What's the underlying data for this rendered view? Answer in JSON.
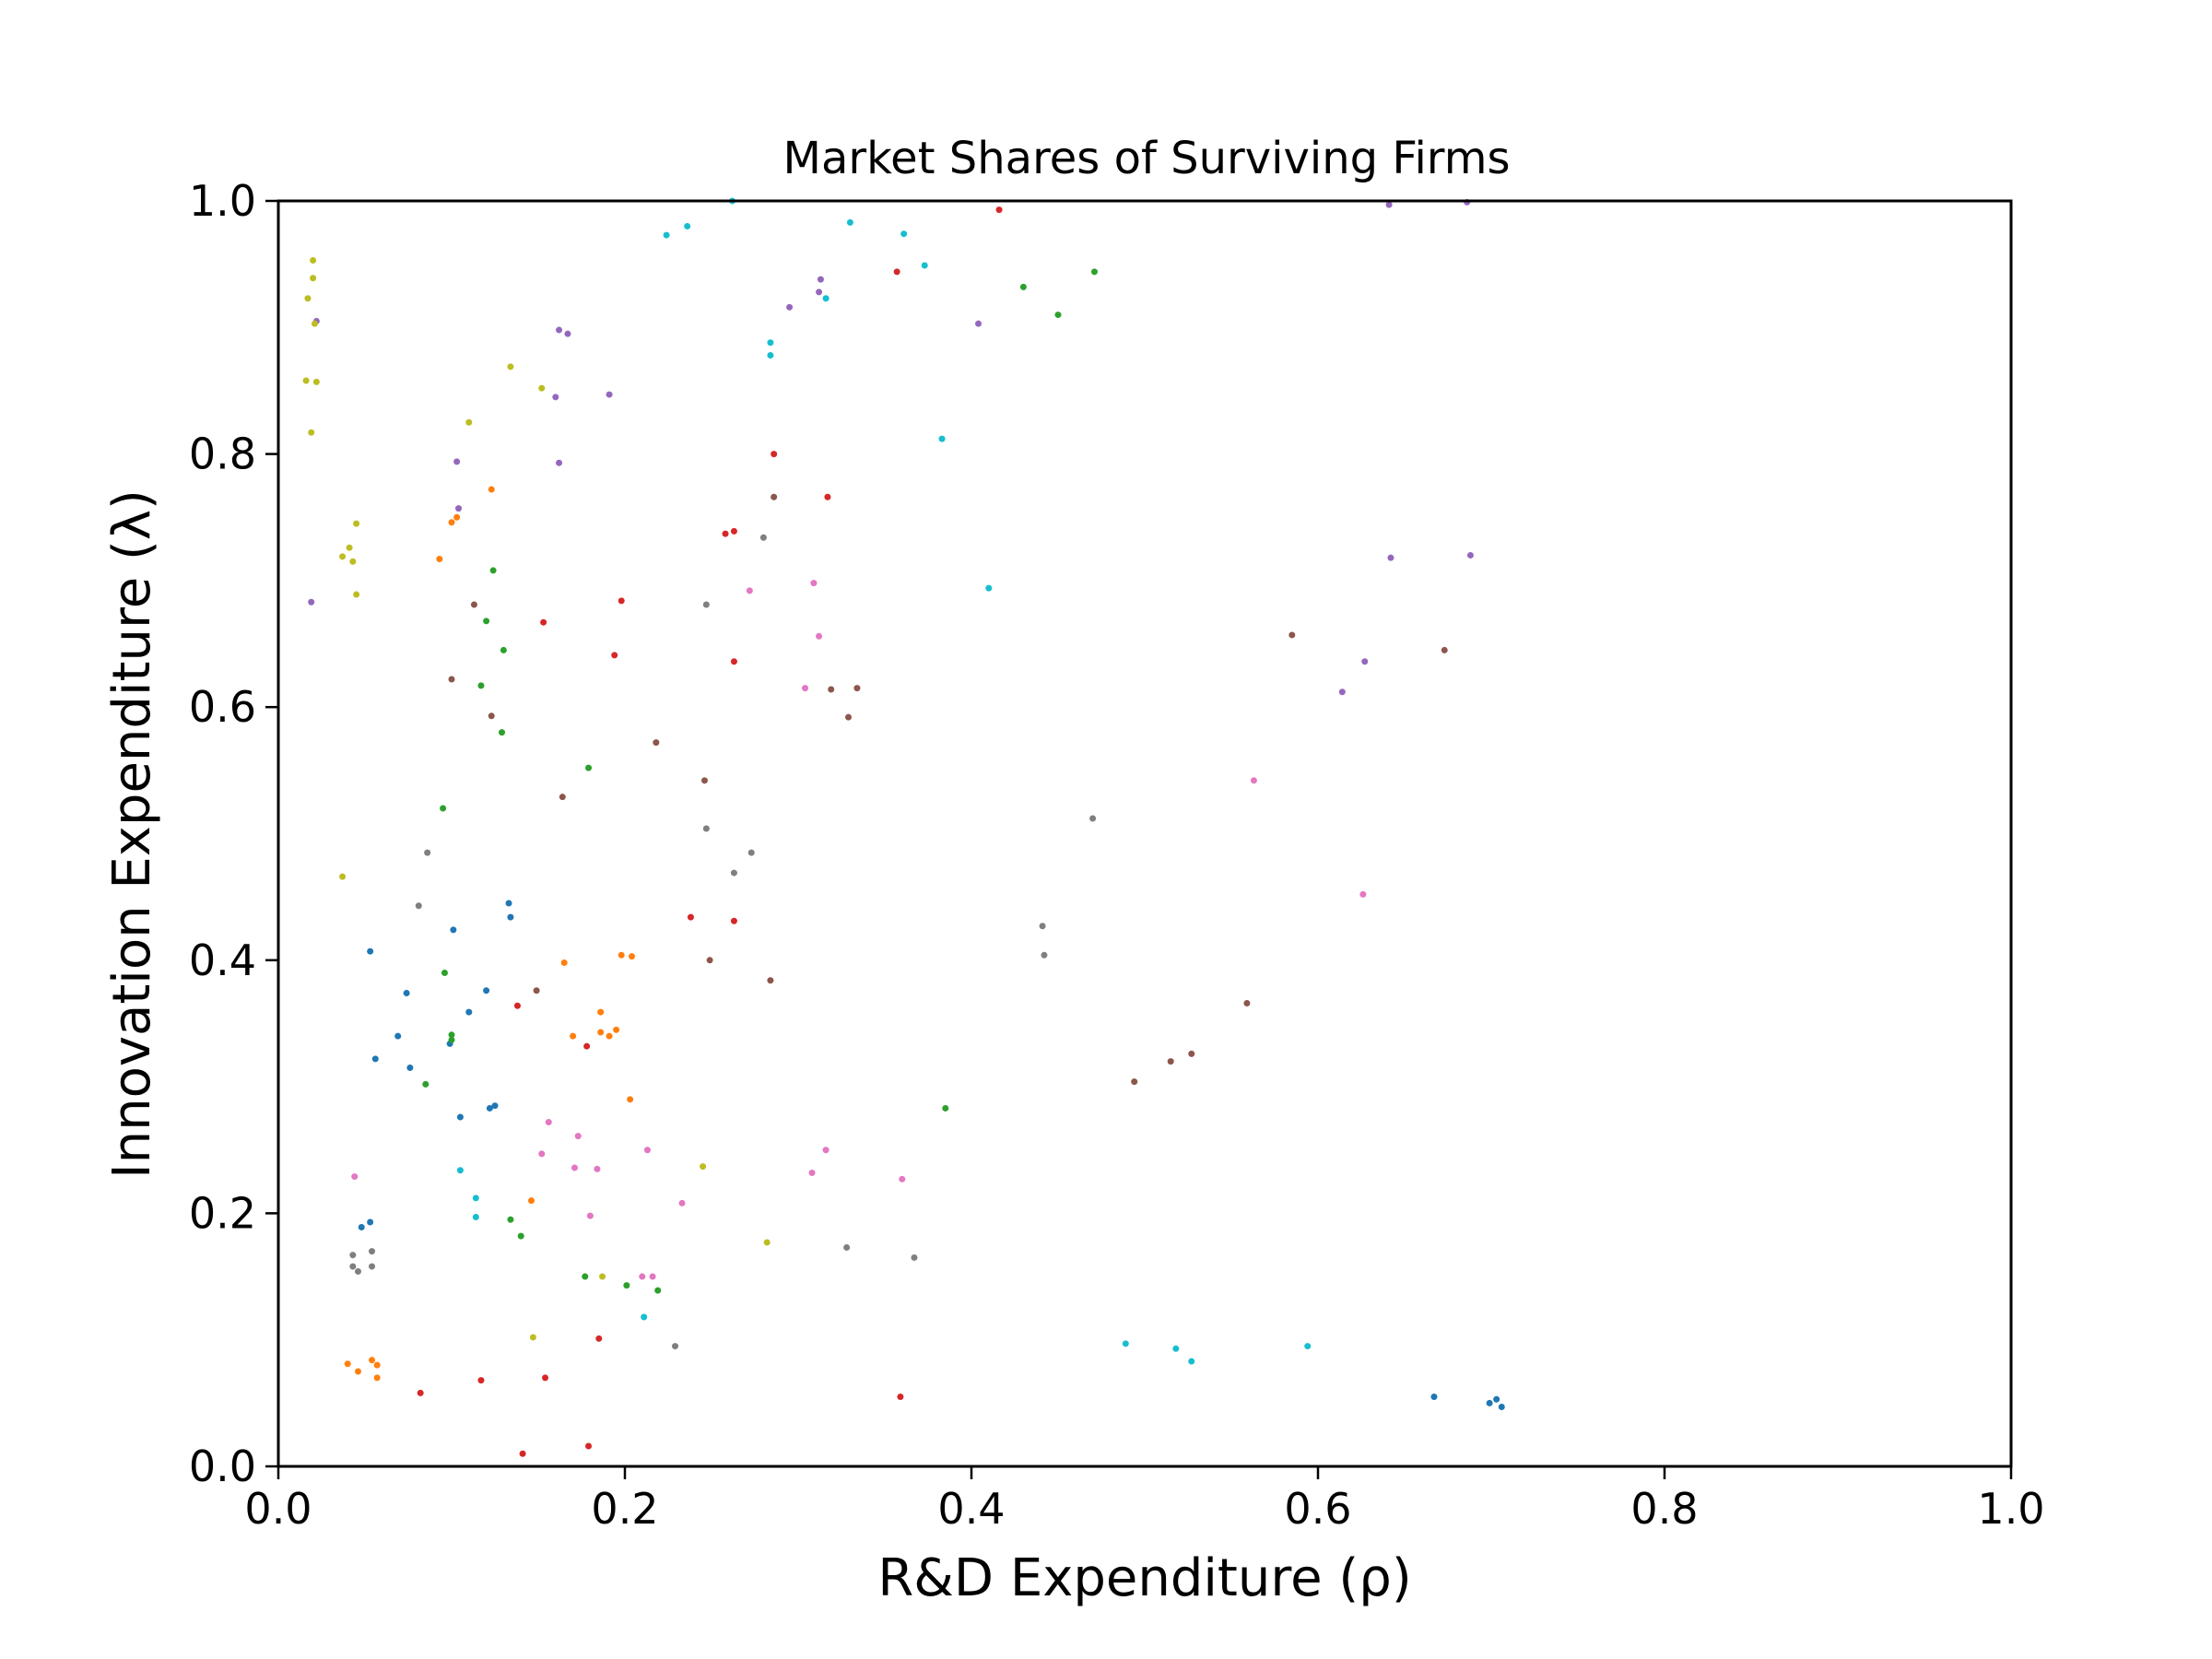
{
  "chart_data": {
    "type": "scatter",
    "title": "Market Shares of Surviving Firms",
    "xlabel": "R&D Expenditure (ρ)",
    "ylabel": "Innovation Expenditure (λ)",
    "xlim": [
      0,
      1
    ],
    "ylim": [
      0,
      1
    ],
    "xticks": [
      "0.0",
      "0.2",
      "0.4",
      "0.6",
      "0.8",
      "1.0"
    ],
    "yticks": [
      "0.0",
      "0.2",
      "0.4",
      "0.6",
      "0.8",
      "1.0"
    ],
    "grid": false,
    "legend": "none",
    "series": [
      {
        "color": "#1f77b4",
        "points": [
          [
            0.053,
            0.407
          ],
          [
            0.074,
            0.374
          ],
          [
            0.069,
            0.34
          ],
          [
            0.076,
            0.315
          ],
          [
            0.056,
            0.322
          ],
          [
            0.101,
            0.424
          ],
          [
            0.11,
            0.359
          ],
          [
            0.099,
            0.334
          ],
          [
            0.105,
            0.276
          ],
          [
            0.125,
            0.285
          ],
          [
            0.122,
            0.283
          ],
          [
            0.133,
            0.445
          ],
          [
            0.134,
            0.434
          ],
          [
            0.12,
            0.376
          ],
          [
            0.048,
            0.189
          ],
          [
            0.053,
            0.193
          ],
          [
            0.667,
            0.055
          ],
          [
            0.699,
            0.05
          ],
          [
            0.703,
            0.053
          ],
          [
            0.706,
            0.047
          ]
        ]
      },
      {
        "color": "#ff7f0e",
        "points": [
          [
            0.1,
            0.746
          ],
          [
            0.103,
            0.75
          ],
          [
            0.093,
            0.717
          ],
          [
            0.123,
            0.772
          ],
          [
            0.165,
            0.398
          ],
          [
            0.186,
            0.359
          ],
          [
            0.186,
            0.343
          ],
          [
            0.191,
            0.34
          ],
          [
            0.195,
            0.345
          ],
          [
            0.198,
            0.404
          ],
          [
            0.204,
            0.403
          ],
          [
            0.17,
            0.34
          ],
          [
            0.203,
            0.29
          ],
          [
            0.146,
            0.21
          ],
          [
            0.04,
            0.081
          ],
          [
            0.046,
            0.075
          ],
          [
            0.054,
            0.084
          ],
          [
            0.057,
            0.08
          ],
          [
            0.057,
            0.07
          ]
        ]
      },
      {
        "color": "#2ca02c",
        "points": [
          [
            0.124,
            0.708
          ],
          [
            0.12,
            0.668
          ],
          [
            0.13,
            0.645
          ],
          [
            0.117,
            0.617
          ],
          [
            0.129,
            0.58
          ],
          [
            0.095,
            0.52
          ],
          [
            0.179,
            0.552
          ],
          [
            0.096,
            0.39
          ],
          [
            0.1,
            0.341
          ],
          [
            0.1,
            0.337
          ],
          [
            0.085,
            0.302
          ],
          [
            0.134,
            0.195
          ],
          [
            0.14,
            0.182
          ],
          [
            0.177,
            0.15
          ],
          [
            0.201,
            0.143
          ],
          [
            0.219,
            0.139
          ],
          [
            0.385,
            0.283
          ],
          [
            0.43,
            0.932
          ],
          [
            0.45,
            0.91
          ],
          [
            0.471,
            0.944
          ]
        ]
      },
      {
        "color": "#d62728",
        "points": [
          [
            0.153,
            0.667
          ],
          [
            0.198,
            0.684
          ],
          [
            0.194,
            0.641
          ],
          [
            0.258,
            0.737
          ],
          [
            0.263,
            0.739
          ],
          [
            0.286,
            0.8
          ],
          [
            0.317,
            0.766
          ],
          [
            0.263,
            0.636
          ],
          [
            0.238,
            0.434
          ],
          [
            0.263,
            0.431
          ],
          [
            0.138,
            0.364
          ],
          [
            0.178,
            0.332
          ],
          [
            0.185,
            0.101
          ],
          [
            0.082,
            0.058
          ],
          [
            0.117,
            0.068
          ],
          [
            0.154,
            0.07
          ],
          [
            0.141,
            0.01
          ],
          [
            0.179,
            0.016
          ],
          [
            0.359,
            0.055
          ],
          [
            0.357,
            0.944
          ],
          [
            0.416,
            0.993
          ]
        ]
      },
      {
        "color": "#9467bd",
        "points": [
          [
            0.022,
            0.905
          ],
          [
            0.019,
            0.683
          ],
          [
            0.103,
            0.794
          ],
          [
            0.104,
            0.757
          ],
          [
            0.162,
            0.793
          ],
          [
            0.16,
            0.845
          ],
          [
            0.162,
            0.898
          ],
          [
            0.167,
            0.895
          ],
          [
            0.191,
            0.847
          ],
          [
            0.295,
            0.916
          ],
          [
            0.312,
            0.928
          ],
          [
            0.313,
            0.938
          ],
          [
            0.404,
            0.903
          ],
          [
            0.641,
            0.997
          ],
          [
            0.686,
            0.999
          ],
          [
            0.642,
            0.718
          ],
          [
            0.688,
            0.72
          ],
          [
            0.627,
            0.636
          ],
          [
            0.614,
            0.612
          ]
        ]
      },
      {
        "color": "#8c564b",
        "points": [
          [
            0.113,
            0.681
          ],
          [
            0.1,
            0.622
          ],
          [
            0.123,
            0.593
          ],
          [
            0.164,
            0.529
          ],
          [
            0.218,
            0.572
          ],
          [
            0.246,
            0.542
          ],
          [
            0.286,
            0.766
          ],
          [
            0.319,
            0.614
          ],
          [
            0.334,
            0.615
          ],
          [
            0.329,
            0.592
          ],
          [
            0.249,
            0.4
          ],
          [
            0.284,
            0.384
          ],
          [
            0.149,
            0.376
          ],
          [
            0.494,
            0.304
          ],
          [
            0.515,
            0.32
          ],
          [
            0.527,
            0.326
          ],
          [
            0.559,
            0.366
          ],
          [
            0.585,
            0.657
          ],
          [
            0.673,
            0.645
          ]
        ]
      },
      {
        "color": "#e377c2",
        "points": [
          [
            0.044,
            0.229
          ],
          [
            0.152,
            0.247
          ],
          [
            0.156,
            0.272
          ],
          [
            0.173,
            0.261
          ],
          [
            0.171,
            0.236
          ],
          [
            0.184,
            0.235
          ],
          [
            0.18,
            0.198
          ],
          [
            0.213,
            0.25
          ],
          [
            0.233,
            0.208
          ],
          [
            0.21,
            0.15
          ],
          [
            0.216,
            0.15
          ],
          [
            0.272,
            0.692
          ],
          [
            0.309,
            0.698
          ],
          [
            0.312,
            0.656
          ],
          [
            0.304,
            0.615
          ],
          [
            0.308,
            0.232
          ],
          [
            0.316,
            0.25
          ],
          [
            0.36,
            0.227
          ],
          [
            0.563,
            0.542
          ],
          [
            0.626,
            0.452
          ]
        ]
      },
      {
        "color": "#7f7f7f",
        "points": [
          [
            0.086,
            0.485
          ],
          [
            0.081,
            0.443
          ],
          [
            0.043,
            0.167
          ],
          [
            0.043,
            0.158
          ],
          [
            0.046,
            0.154
          ],
          [
            0.054,
            0.17
          ],
          [
            0.054,
            0.158
          ],
          [
            0.247,
            0.681
          ],
          [
            0.247,
            0.504
          ],
          [
            0.263,
            0.469
          ],
          [
            0.273,
            0.485
          ],
          [
            0.28,
            0.734
          ],
          [
            0.229,
            0.095
          ],
          [
            0.328,
            0.173
          ],
          [
            0.367,
            0.165
          ],
          [
            0.441,
            0.427
          ],
          [
            0.442,
            0.404
          ],
          [
            0.47,
            0.512
          ]
        ]
      },
      {
        "color": "#bcbd22",
        "points": [
          [
            0.02,
            0.953
          ],
          [
            0.02,
            0.939
          ],
          [
            0.017,
            0.923
          ],
          [
            0.021,
            0.903
          ],
          [
            0.016,
            0.858
          ],
          [
            0.022,
            0.857
          ],
          [
            0.019,
            0.817
          ],
          [
            0.045,
            0.745
          ],
          [
            0.037,
            0.719
          ],
          [
            0.041,
            0.726
          ],
          [
            0.043,
            0.715
          ],
          [
            0.045,
            0.689
          ],
          [
            0.037,
            0.466
          ],
          [
            0.134,
            0.869
          ],
          [
            0.152,
            0.852
          ],
          [
            0.11,
            0.825
          ],
          [
            0.245,
            0.237
          ],
          [
            0.187,
            0.15
          ],
          [
            0.147,
            0.102
          ],
          [
            0.282,
            0.177
          ]
        ]
      },
      {
        "color": "#17becf",
        "points": [
          [
            0.224,
            0.973
          ],
          [
            0.236,
            0.98
          ],
          [
            0.262,
            1.0
          ],
          [
            0.33,
            0.983
          ],
          [
            0.361,
            0.974
          ],
          [
            0.373,
            0.949
          ],
          [
            0.316,
            0.923
          ],
          [
            0.284,
            0.888
          ],
          [
            0.284,
            0.878
          ],
          [
            0.383,
            0.812
          ],
          [
            0.41,
            0.694
          ],
          [
            0.105,
            0.234
          ],
          [
            0.114,
            0.212
          ],
          [
            0.114,
            0.197
          ],
          [
            0.211,
            0.118
          ],
          [
            0.489,
            0.097
          ],
          [
            0.518,
            0.093
          ],
          [
            0.527,
            0.083
          ],
          [
            0.594,
            0.095
          ]
        ]
      }
    ]
  }
}
